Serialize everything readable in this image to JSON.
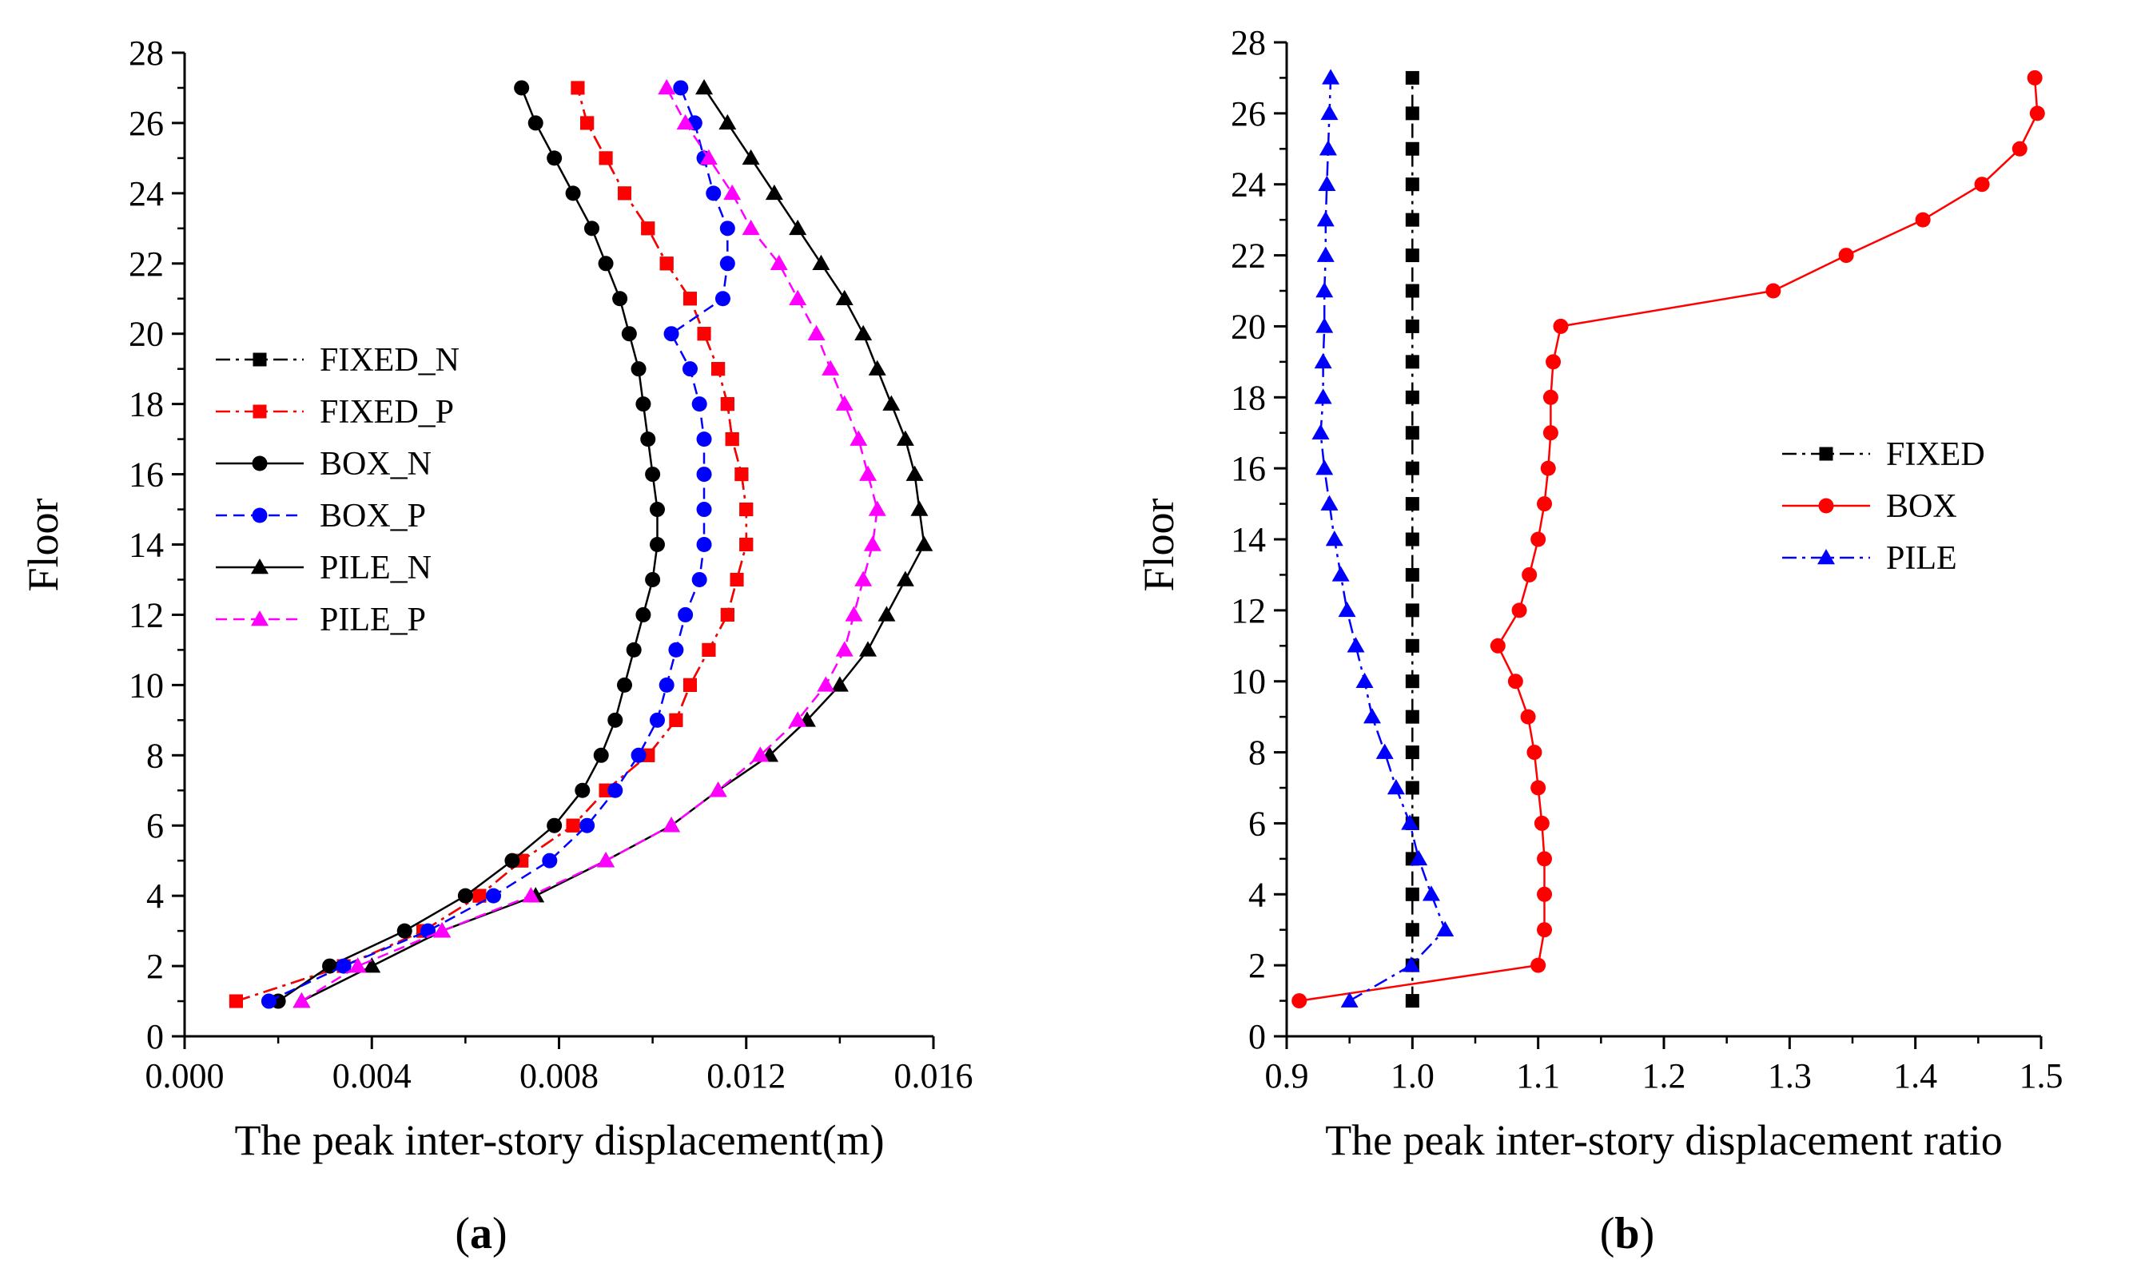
{
  "chart_data": [
    {
      "type": "line",
      "panel": "(a)",
      "panel_letter": "a",
      "xlabel": "The peak inter-story displacement(m)",
      "ylabel": "Floor",
      "xlim": [
        0.0,
        0.016
      ],
      "ylim": [
        0,
        28
      ],
      "xticks": [
        "0.000",
        "0.004",
        "0.008",
        "0.012",
        "0.016"
      ],
      "yticks": [
        "0",
        "2",
        "4",
        "6",
        "8",
        "10",
        "12",
        "14",
        "16",
        "18",
        "20",
        "22",
        "24",
        "26",
        "28"
      ],
      "grid": false,
      "legend_position": "left-middle",
      "y": [
        1,
        2,
        3,
        4,
        5,
        6,
        7,
        8,
        9,
        10,
        11,
        12,
        13,
        14,
        15,
        16,
        17,
        18,
        19,
        20,
        21,
        22,
        23,
        24,
        25,
        26,
        27
      ],
      "series": [
        {
          "name": "FIXED_N",
          "color": "#000000",
          "dash": "dashdot",
          "marker": "square",
          "values": [
            0.0011,
            0.0034,
            0.0051,
            0.0063,
            0.0072,
            0.0083,
            0.009,
            0.0099,
            0.0105,
            0.0108,
            0.0112,
            0.0116,
            0.0118,
            0.012,
            0.012,
            0.0119,
            0.0117,
            0.0116,
            0.0114,
            0.0111,
            0.0108,
            0.0103,
            0.0099,
            0.0094,
            0.009,
            0.0086,
            0.0084
          ]
        },
        {
          "name": "FIXED_P",
          "color": "#ff0000",
          "dash": "dashdot",
          "marker": "square",
          "values": [
            0.0011,
            0.0034,
            0.0051,
            0.0063,
            0.0072,
            0.0083,
            0.009,
            0.0099,
            0.0105,
            0.0108,
            0.0112,
            0.0116,
            0.0118,
            0.012,
            0.012,
            0.0119,
            0.0117,
            0.0116,
            0.0114,
            0.0111,
            0.0108,
            0.0103,
            0.0099,
            0.0094,
            0.009,
            0.0086,
            0.0084
          ]
        },
        {
          "name": "BOX_N",
          "color": "#000000",
          "dash": "solid",
          "marker": "circle",
          "values": [
            0.002,
            0.0031,
            0.0047,
            0.006,
            0.007,
            0.0079,
            0.0085,
            0.0089,
            0.0092,
            0.0094,
            0.0096,
            0.0098,
            0.01,
            0.0101,
            0.0101,
            0.01,
            0.0099,
            0.0098,
            0.0097,
            0.0095,
            0.0093,
            0.009,
            0.0087,
            0.0083,
            0.0079,
            0.0075,
            0.0072
          ]
        },
        {
          "name": "BOX_P",
          "color": "#0000ff",
          "dash": "dashed",
          "marker": "circle",
          "values": [
            0.0018,
            0.0034,
            0.0052,
            0.0066,
            0.0078,
            0.0086,
            0.0092,
            0.0097,
            0.0101,
            0.0103,
            0.0105,
            0.0107,
            0.011,
            0.0111,
            0.0111,
            0.0111,
            0.0111,
            0.011,
            0.0108,
            0.0104,
            0.0115,
            0.0116,
            0.0116,
            0.0113,
            0.0111,
            0.0109,
            0.0106
          ]
        },
        {
          "name": "PILE_N",
          "color": "#000000",
          "dash": "solid",
          "marker": "triangle",
          "values": [
            0.0025,
            0.004,
            0.0055,
            0.0075,
            0.009,
            0.0104,
            0.0114,
            0.0125,
            0.0133,
            0.014,
            0.0146,
            0.015,
            0.0154,
            0.0158,
            0.0157,
            0.0156,
            0.0154,
            0.0151,
            0.0148,
            0.0145,
            0.0141,
            0.0136,
            0.0131,
            0.0126,
            0.0121,
            0.0116,
            0.0111
          ]
        },
        {
          "name": "PILE_P",
          "color": "#ff00ff",
          "dash": "dashed",
          "marker": "triangle",
          "values": [
            0.0025,
            0.0037,
            0.0055,
            0.0074,
            0.009,
            0.0104,
            0.0114,
            0.0123,
            0.0131,
            0.0137,
            0.0141,
            0.0143,
            0.0145,
            0.0147,
            0.0148,
            0.0146,
            0.0144,
            0.0141,
            0.0138,
            0.0135,
            0.0131,
            0.0127,
            0.0121,
            0.0117,
            0.0112,
            0.0107,
            0.0103
          ]
        }
      ]
    },
    {
      "type": "line",
      "panel": "(b)",
      "panel_letter": "b",
      "xlabel": "The peak inter-story displacement ratio",
      "ylabel": "Floor",
      "xlim": [
        0.9,
        1.5
      ],
      "ylim": [
        0,
        28
      ],
      "xticks": [
        "0.9",
        "1.0",
        "1.1",
        "1.2",
        "1.3",
        "1.4",
        "1.5"
      ],
      "yticks": [
        "0",
        "2",
        "4",
        "6",
        "8",
        "10",
        "12",
        "14",
        "16",
        "18",
        "20",
        "22",
        "24",
        "26",
        "28"
      ],
      "grid": false,
      "legend_position": "right-middle",
      "y": [
        1,
        2,
        3,
        4,
        5,
        6,
        7,
        8,
        9,
        10,
        11,
        12,
        13,
        14,
        15,
        16,
        17,
        18,
        19,
        20,
        21,
        22,
        23,
        24,
        25,
        26,
        27
      ],
      "series": [
        {
          "name": "FIXED",
          "color": "#000000",
          "dash": "dashdot",
          "marker": "square",
          "values": [
            1.0,
            1.0,
            1.0,
            1.0,
            1.0,
            1.0,
            1.0,
            1.0,
            1.0,
            1.0,
            1.0,
            1.0,
            1.0,
            1.0,
            1.0,
            1.0,
            1.0,
            1.0,
            1.0,
            1.0,
            1.0,
            1.0,
            1.0,
            1.0,
            1.0,
            1.0,
            1.0
          ]
        },
        {
          "name": "BOX",
          "color": "#ff0000",
          "dash": "solid",
          "marker": "circle",
          "values": [
            0.91,
            1.1,
            1.105,
            1.105,
            1.105,
            1.103,
            1.1,
            1.097,
            1.092,
            1.082,
            1.068,
            1.085,
            1.093,
            1.1,
            1.105,
            1.108,
            1.11,
            1.11,
            1.112,
            1.118,
            1.287,
            1.345,
            1.406,
            1.453,
            1.483,
            1.497,
            1.495
          ]
        },
        {
          "name": "PILE",
          "color": "#0000ff",
          "dash": "dashdot",
          "marker": "triangle",
          "values": [
            0.95,
            0.999,
            1.026,
            1.015,
            1.005,
            0.998,
            0.987,
            0.978,
            0.968,
            0.962,
            0.955,
            0.948,
            0.943,
            0.938,
            0.934,
            0.93,
            0.927,
            0.929,
            0.929,
            0.93,
            0.93,
            0.931,
            0.931,
            0.932,
            0.933,
            0.934,
            0.935
          ]
        }
      ]
    }
  ]
}
